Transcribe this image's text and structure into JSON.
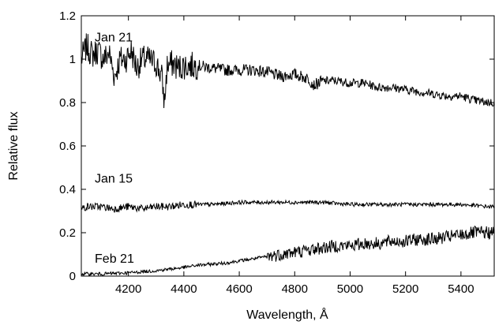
{
  "chart_data": {
    "type": "line",
    "title": "",
    "xlabel": "Wavelength, Å",
    "ylabel": "Relative flux",
    "xlim": [
      4030,
      5520
    ],
    "ylim": [
      0,
      1.2
    ],
    "xticks": [
      4200,
      4400,
      4600,
      4800,
      5000,
      5200,
      5400
    ],
    "yticks": [
      0,
      0.2,
      0.4,
      0.6,
      0.8,
      1,
      1.2
    ],
    "ytick_labels": [
      "0",
      "0.2",
      "0.4",
      "0.6",
      "0.8",
      "1",
      "1.2"
    ],
    "grid": false,
    "legend": "none",
    "series": [
      {
        "name": "Jan 21",
        "label_at": [
          4070,
          1.1
        ],
        "x": [
          4030,
          4050,
          4070,
          4090,
          4110,
          4130,
          4150,
          4170,
          4190,
          4210,
          4230,
          4250,
          4270,
          4300,
          4320,
          4330,
          4340,
          4360,
          4380,
          4400,
          4420,
          4450,
          4500,
          4550,
          4600,
          4650,
          4700,
          4750,
          4800,
          4850,
          4870,
          4900,
          4950,
          5000,
          5050,
          5100,
          5150,
          5200,
          5250,
          5300,
          5350,
          5400,
          5450,
          5500,
          5520
        ],
        "y": [
          1.0,
          1.06,
          1.02,
          1.04,
          1.0,
          1.03,
          0.92,
          1.0,
          1.0,
          1.04,
          0.96,
          1.0,
          1.0,
          0.98,
          0.92,
          0.8,
          0.97,
          0.98,
          0.96,
          0.97,
          0.97,
          0.97,
          0.96,
          0.95,
          0.95,
          0.95,
          0.94,
          0.92,
          0.93,
          0.91,
          0.88,
          0.9,
          0.9,
          0.89,
          0.89,
          0.87,
          0.87,
          0.86,
          0.85,
          0.84,
          0.83,
          0.83,
          0.81,
          0.8,
          0.8
        ]
      },
      {
        "name": "Jan 15",
        "label_at": [
          4070,
          0.45
        ],
        "x": [
          4030,
          4050,
          4100,
          4150,
          4200,
          4250,
          4300,
          4350,
          4400,
          4450,
          4500,
          4600,
          4700,
          4800,
          4900,
          5000,
          5100,
          5200,
          5300,
          5400,
          5500,
          5520
        ],
        "y": [
          0.31,
          0.32,
          0.32,
          0.31,
          0.32,
          0.31,
          0.32,
          0.32,
          0.33,
          0.33,
          0.33,
          0.34,
          0.34,
          0.34,
          0.34,
          0.33,
          0.33,
          0.33,
          0.33,
          0.33,
          0.32,
          0.32
        ]
      },
      {
        "name": "Feb 21",
        "label_at": [
          4070,
          0.08
        ],
        "x": [
          4030,
          4100,
          4200,
          4300,
          4400,
          4450,
          4500,
          4550,
          4600,
          4650,
          4700,
          4750,
          4800,
          4850,
          4900,
          4950,
          5000,
          5050,
          5100,
          5150,
          5200,
          5250,
          5300,
          5350,
          5400,
          5450,
          5500,
          5520
        ],
        "y": [
          0.01,
          0.01,
          0.015,
          0.025,
          0.04,
          0.05,
          0.055,
          0.06,
          0.07,
          0.08,
          0.09,
          0.1,
          0.11,
          0.12,
          0.13,
          0.14,
          0.14,
          0.15,
          0.15,
          0.16,
          0.16,
          0.17,
          0.17,
          0.18,
          0.19,
          0.2,
          0.2,
          0.2
        ]
      }
    ]
  }
}
